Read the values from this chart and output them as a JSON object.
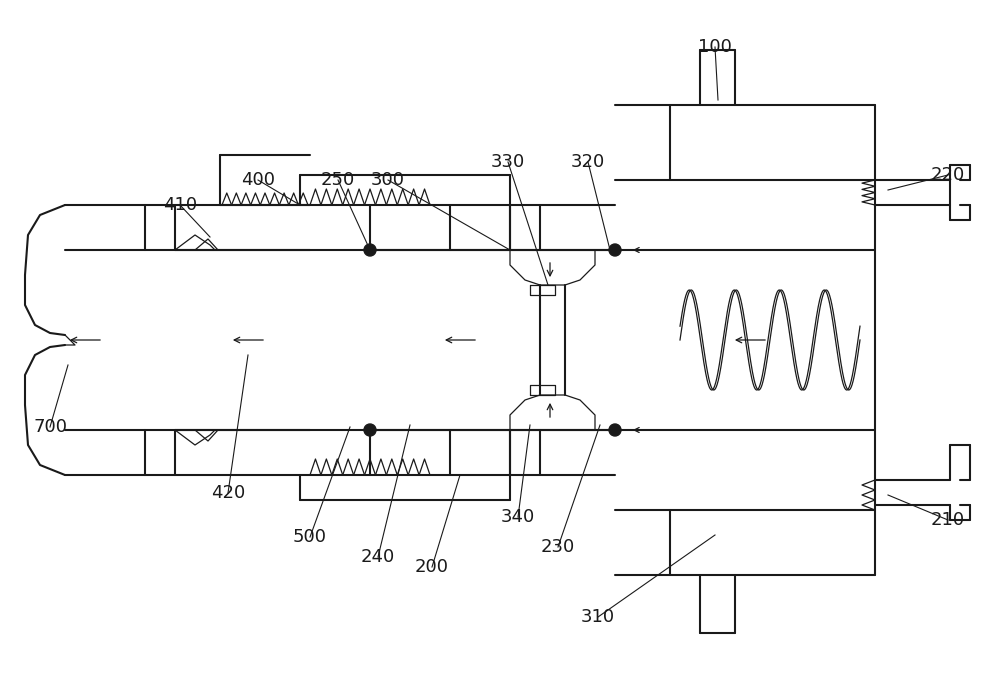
{
  "bg_color": "#ffffff",
  "line_color": "#1a1a1a",
  "lw": 1.5,
  "lw_thin": 0.9,
  "figsize": [
    10.0,
    6.95
  ],
  "dpi": 100
}
